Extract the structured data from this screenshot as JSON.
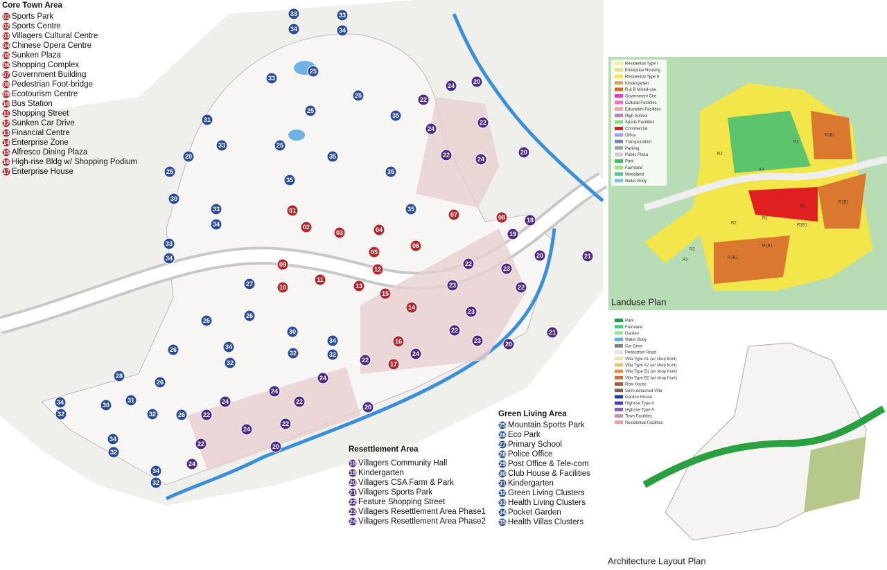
{
  "core_town": {
    "title": "Core Town Area",
    "items": [
      {
        "code": "01",
        "label": "Sports Park"
      },
      {
        "code": "02",
        "label": "Sports Centre"
      },
      {
        "code": "03",
        "label": "Villagers Cultural Centre"
      },
      {
        "code": "04",
        "label": "Chinese Opera Centre"
      },
      {
        "code": "05",
        "label": "Sunken Plaza"
      },
      {
        "code": "06",
        "label": "Shopping Complex"
      },
      {
        "code": "07",
        "label": "Government Building"
      },
      {
        "code": "08",
        "label": "Pedestrian Foot-bridge"
      },
      {
        "code": "09",
        "label": "Ecotourism Centre"
      },
      {
        "code": "10",
        "label": "Bus Station"
      },
      {
        "code": "11",
        "label": "Shopping Street"
      },
      {
        "code": "12",
        "label": "Sunken Car Drive"
      },
      {
        "code": "13",
        "label": "Financial Centre"
      },
      {
        "code": "14",
        "label": "Enterprise Zone"
      },
      {
        "code": "15",
        "label": "Alfresco Dining Plaza"
      },
      {
        "code": "16",
        "label": "High-rise Bldg w/ Shopping Podium"
      },
      {
        "code": "17",
        "label": "Enterprise House"
      }
    ]
  },
  "resettlement": {
    "title": "Resettlement Area",
    "items": [
      {
        "code": "18",
        "label": "Villagers Community Hall"
      },
      {
        "code": "19",
        "label": "Kindergarten"
      },
      {
        "code": "20",
        "label": "Villagers CSA Farm & Park"
      },
      {
        "code": "21",
        "label": "Villagers Sports Park"
      },
      {
        "code": "22",
        "label": "Feature Shopping Street"
      },
      {
        "code": "23",
        "label": "Villagers Resettlement Area Phase1"
      },
      {
        "code": "24",
        "label": "Villagers Resettlement Area Phase2"
      }
    ]
  },
  "green_living": {
    "title": "Green Living Area",
    "items": [
      {
        "code": "25",
        "label": "Mountain Sports Park"
      },
      {
        "code": "26",
        "label": "Eco Park"
      },
      {
        "code": "27",
        "label": "Primary School"
      },
      {
        "code": "28",
        "label": "Police Office"
      },
      {
        "code": "29",
        "label": "Post Office & Tele-com"
      },
      {
        "code": "30",
        "label": "Club House & Facilities"
      },
      {
        "code": "31",
        "label": "Kindergarten"
      },
      {
        "code": "32",
        "label": "Green Living Clusters"
      },
      {
        "code": "33",
        "label": "Health Living Clusters"
      },
      {
        "code": "34",
        "label": "Pocket Garden"
      },
      {
        "code": "35",
        "label": "Health Villas Clusters"
      }
    ]
  },
  "markers": [
    "33",
    "33",
    "34",
    "34",
    "25",
    "25",
    "25",
    "25",
    "33",
    "31",
    "33",
    "29",
    "25",
    "35",
    "35",
    "35",
    "35",
    "35",
    "30",
    "33",
    "34",
    "33",
    "34",
    "27",
    "26",
    "26",
    "26",
    "26",
    "26",
    "30",
    "34",
    "34",
    "32",
    "32",
    "32",
    "32",
    "32",
    "32",
    "32",
    "28",
    "30",
    "31",
    "34",
    "34",
    "34",
    "01",
    "02",
    "03",
    "04",
    "05",
    "06",
    "07",
    "08",
    "09",
    "10",
    "11",
    "12",
    "13",
    "14",
    "15",
    "16",
    "17",
    "20",
    "20",
    "20",
    "20",
    "20",
    "20",
    "22",
    "22",
    "22",
    "22",
    "22",
    "22",
    "22",
    "22",
    "22",
    "22",
    "22",
    "24",
    "24",
    "24",
    "24",
    "24",
    "24",
    "24",
    "24",
    "24",
    "18",
    "19",
    "21",
    "21",
    "23",
    "23",
    "23",
    "23"
  ],
  "landuse_plan": {
    "title": "Landuse Plan",
    "legend": [
      {
        "label": "Residential Type I",
        "color": "#f5f08a"
      },
      {
        "label": "Enterprise Housing",
        "color": "#e8e070"
      },
      {
        "label": "Residential Type II",
        "color": "#f2e64a"
      },
      {
        "label": "Kindergarten",
        "color": "#e0a060"
      },
      {
        "label": "R & B Mixed-use",
        "color": "#d2691e"
      },
      {
        "label": "Government Site",
        "color": "#e040c0"
      },
      {
        "label": "Cultural Facilities",
        "color": "#f070c0"
      },
      {
        "label": "Education Facilities",
        "color": "#f4a0b0"
      },
      {
        "label": "High School",
        "color": "#c080c0"
      },
      {
        "label": "Sports Facilities",
        "color": "#80e080"
      },
      {
        "label": "Commercial",
        "color": "#e02020"
      },
      {
        "label": "Office",
        "color": "#a0a0ff"
      },
      {
        "label": "Transportation",
        "color": "#8080b0"
      },
      {
        "label": "Parking",
        "color": "#a0a0a0"
      },
      {
        "label": "Public Plaza",
        "color": "#d0d0d0"
      },
      {
        "label": "Park",
        "color": "#40c060"
      },
      {
        "label": "Farmland",
        "color": "#a0e080"
      },
      {
        "label": "Woodland",
        "color": "#60c090"
      },
      {
        "label": "Water Body",
        "color": "#80c0f0"
      }
    ],
    "zone_labels": [
      "R2",
      "R1",
      "R1B1",
      "A4",
      "B1",
      "R1B1",
      "R2",
      "R2",
      "R1B1",
      "R2",
      "R1B1",
      "R1B1",
      "R2"
    ]
  },
  "architecture_plan": {
    "title": "Architecture Layout Plan",
    "legend": [
      {
        "label": "Park",
        "color": "#20a050"
      },
      {
        "label": "Farmland",
        "color": "#40d080"
      },
      {
        "label": "Garden",
        "color": "#a0e0a0"
      },
      {
        "label": "Water Body",
        "color": "#60b0e0"
      },
      {
        "label": "Car Drive",
        "color": "#808080"
      },
      {
        "label": "Pedestrain Road",
        "color": "#e0e0e0"
      },
      {
        "label": "Villa Type A1 (w/ shop front)",
        "color": "#f0e0a0"
      },
      {
        "label": "Villa Type A2 (w/ shop front)",
        "color": "#f0c070"
      },
      {
        "label": "Villa Type B1 (w/ shop front)",
        "color": "#e09040"
      },
      {
        "label": "Villa Type B2 (w/ shop front)",
        "color": "#d07030"
      },
      {
        "label": "Row House",
        "color": "#a06040"
      },
      {
        "label": "Semi-detached Villa",
        "color": "#806050"
      },
      {
        "label": "Garden House",
        "color": "#2040a0"
      },
      {
        "label": "Highrise Type A",
        "color": "#4040c0"
      },
      {
        "label": "Highrise Type A",
        "color": "#8060c0"
      },
      {
        "label": "Town Facilities",
        "color": "#d090c0"
      },
      {
        "label": "Residential Facilities",
        "color": "#f0a0b0"
      }
    ]
  }
}
